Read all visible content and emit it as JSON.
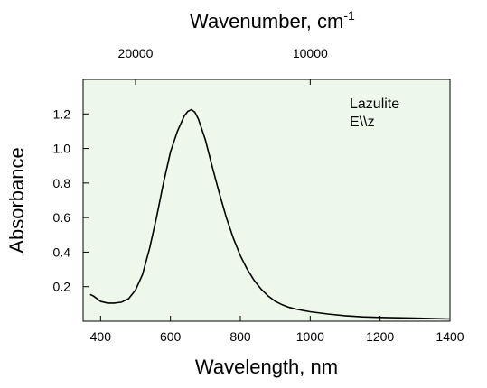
{
  "chart_data": {
    "type": "line",
    "title": "",
    "xlabel": "Wavelength, nm",
    "ylabel": "Absorbance",
    "top_axis_label": "Wavenumber, cm",
    "top_axis_label_sup": "-1",
    "xlim": [
      350,
      1400
    ],
    "ylim": [
      0,
      1.4
    ],
    "x_ticks": [
      400,
      600,
      800,
      1000,
      1200,
      1400
    ],
    "x_tick_labels": [
      "400",
      "600",
      "800",
      "1000",
      "1200",
      "1400"
    ],
    "y_ticks": [
      0.2,
      0.4,
      0.6,
      0.8,
      1.0,
      1.2
    ],
    "y_tick_labels": [
      "0.2",
      "0.4",
      "0.6",
      "0.8",
      "1.0",
      "1.2"
    ],
    "top_ticks": [
      20000,
      10000
    ],
    "top_tick_labels": [
      "20000",
      "10000"
    ],
    "annotations": [
      "Lazulite",
      "E\\\\z"
    ],
    "plot_background": "#eef8ea",
    "line_color": "#000000",
    "grid": false,
    "series": [
      {
        "x": [
          370,
          380,
          400,
          420,
          440,
          460,
          480,
          500,
          520,
          540,
          560,
          580,
          600,
          620,
          640,
          650,
          660,
          670,
          680,
          700,
          720,
          740,
          760,
          780,
          800,
          820,
          840,
          860,
          880,
          900,
          920,
          940,
          960,
          980,
          1000,
          1050,
          1100,
          1150,
          1200,
          1250,
          1300,
          1350,
          1400
        ],
        "y": [
          0.155,
          0.145,
          0.115,
          0.105,
          0.105,
          0.11,
          0.13,
          0.18,
          0.27,
          0.42,
          0.6,
          0.8,
          0.98,
          1.1,
          1.19,
          1.215,
          1.225,
          1.21,
          1.17,
          1.05,
          0.89,
          0.74,
          0.6,
          0.48,
          0.38,
          0.3,
          0.235,
          0.185,
          0.145,
          0.115,
          0.095,
          0.08,
          0.07,
          0.062,
          0.055,
          0.042,
          0.032,
          0.025,
          0.022,
          0.02,
          0.018,
          0.015,
          0.013
        ]
      }
    ]
  }
}
